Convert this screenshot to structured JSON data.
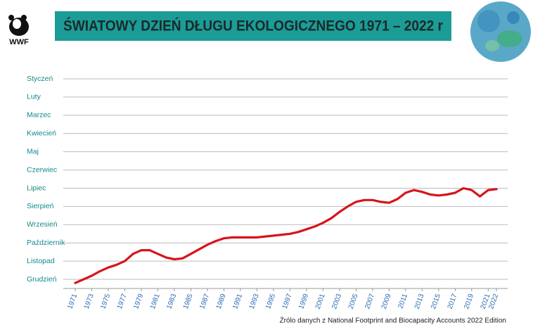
{
  "logo": "WWF",
  "chart_data": {
    "type": "line",
    "title": "ŚWIATOWY DZIEŃ DŁUGU EKOLOGICZNEGO 1971 – 2022 r",
    "source": "Źrólo danych z National Footprint and Biocapacity Accounts 2022 Edition",
    "x": [
      1971,
      1972,
      1973,
      1974,
      1975,
      1976,
      1977,
      1978,
      1979,
      1980,
      1981,
      1982,
      1983,
      1984,
      1985,
      1986,
      1987,
      1988,
      1989,
      1990,
      1991,
      1992,
      1993,
      1994,
      1995,
      1996,
      1997,
      1998,
      1999,
      2000,
      2001,
      2002,
      2003,
      2004,
      2005,
      2006,
      2007,
      2008,
      2009,
      2010,
      2011,
      2012,
      2013,
      2014,
      2015,
      2016,
      2017,
      2018,
      2019,
      2020,
      2021,
      2022
    ],
    "values": [
      12.2,
      12.0,
      11.8,
      11.55,
      11.35,
      11.2,
      11.0,
      10.6,
      10.4,
      10.4,
      10.6,
      10.8,
      10.9,
      10.85,
      10.6,
      10.35,
      10.1,
      9.9,
      9.75,
      9.7,
      9.7,
      9.7,
      9.7,
      9.65,
      9.6,
      9.55,
      9.5,
      9.4,
      9.25,
      9.1,
      8.9,
      8.65,
      8.3,
      8.0,
      7.75,
      7.65,
      7.65,
      7.75,
      7.8,
      7.6,
      7.25,
      7.1,
      7.2,
      7.35,
      7.4,
      7.35,
      7.25,
      7.0,
      7.1,
      7.45,
      7.1,
      7.05
    ],
    "color": "#d7141c",
    "xlim": [
      1970,
      2023
    ],
    "xticks": [
      1971,
      1973,
      1975,
      1977,
      1979,
      1981,
      1983,
      1985,
      1987,
      1989,
      1991,
      1993,
      1995,
      1997,
      1999,
      2001,
      2003,
      2005,
      2007,
      2009,
      2011,
      2013,
      2015,
      2017,
      2019,
      2021,
      2022
    ],
    "ylim": [
      12.5,
      1
    ],
    "yticks": [
      {
        "value": 1,
        "label": "Styczeń"
      },
      {
        "value": 2,
        "label": "Luty"
      },
      {
        "value": 3,
        "label": "Marzec"
      },
      {
        "value": 4,
        "label": "Kwiecień"
      },
      {
        "value": 5,
        "label": "Maj"
      },
      {
        "value": 6,
        "label": "Czerwiec"
      },
      {
        "value": 7,
        "label": "Lipiec"
      },
      {
        "value": 8,
        "label": "Sierpień"
      },
      {
        "value": 9,
        "label": "Wrzesień"
      },
      {
        "value": 10,
        "label": "Październik"
      },
      {
        "value": 11,
        "label": "Listopad"
      },
      {
        "value": 12,
        "label": "Grudzień"
      }
    ],
    "grid": true
  }
}
